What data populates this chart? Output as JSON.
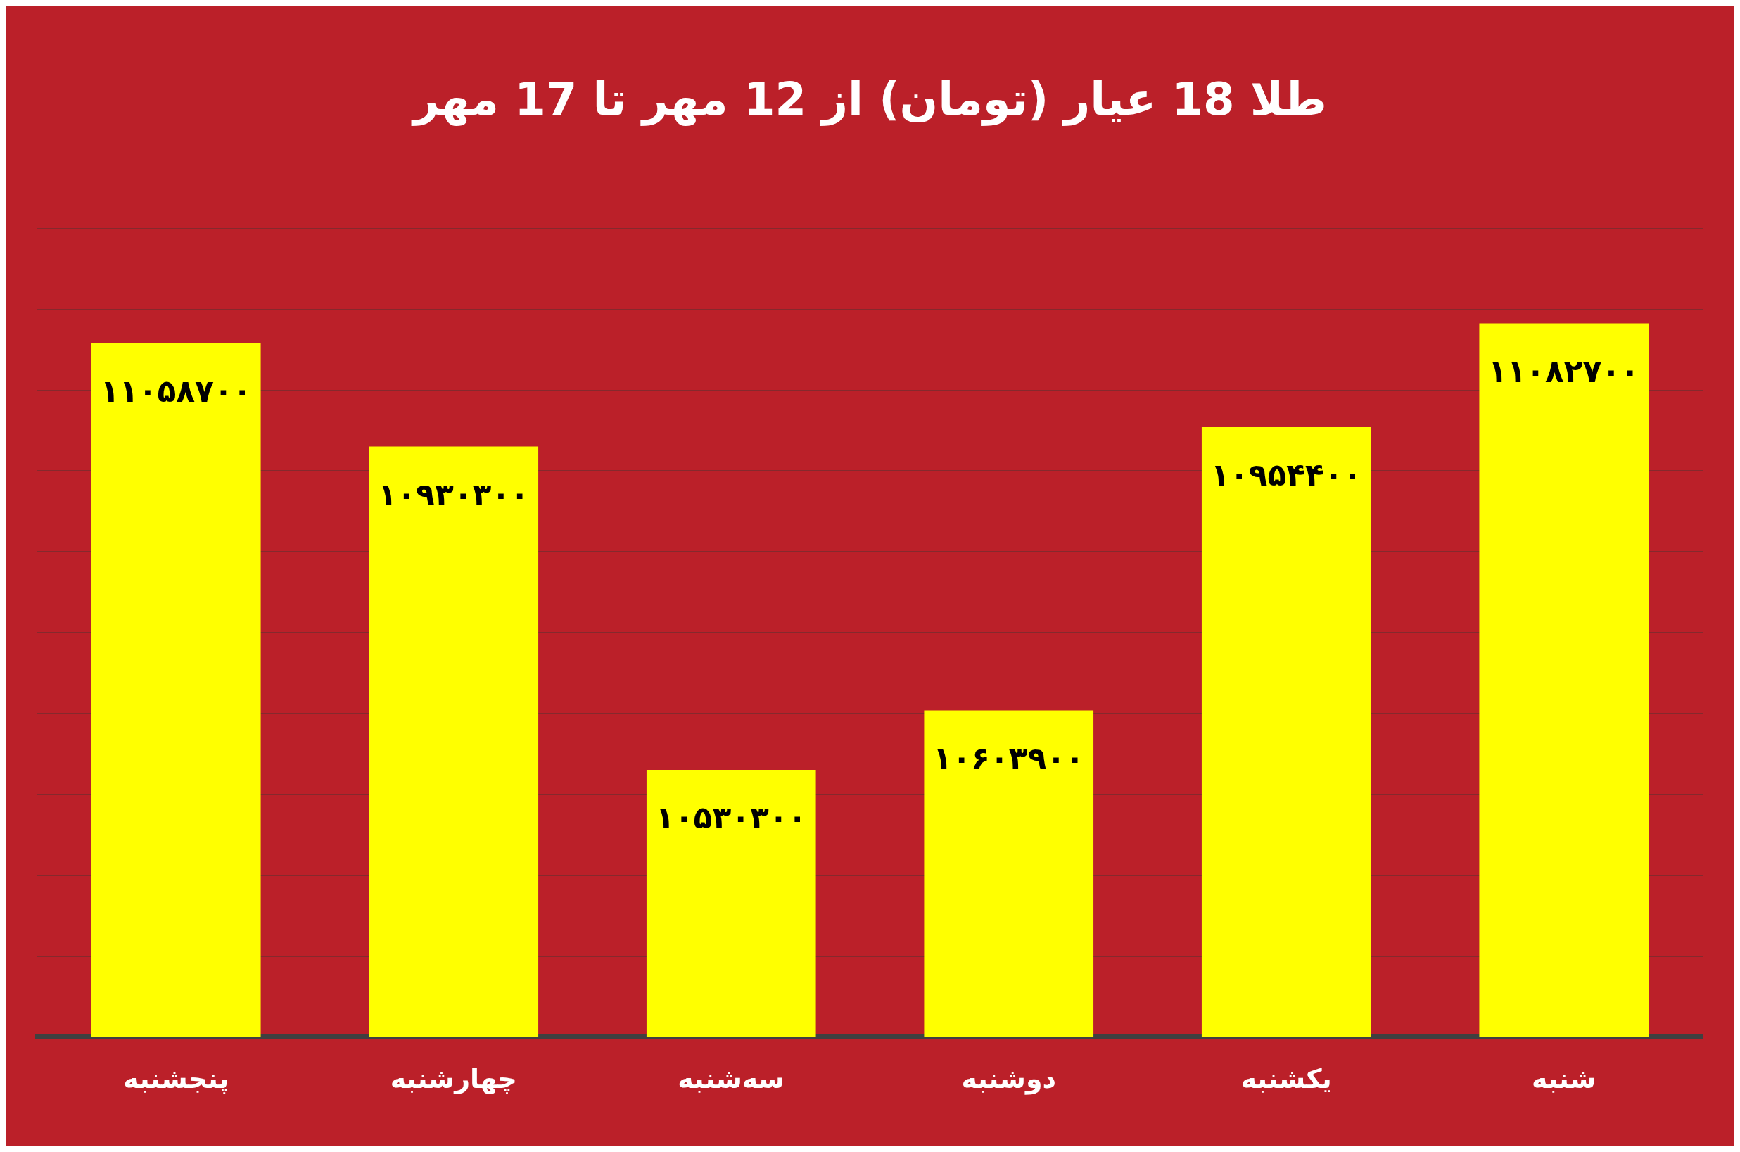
{
  "chart_data": {
    "type": "bar",
    "title": "طلا 18 عیار (تومان) از 12 مهر تا 17 مهر",
    "categories": [
      "پنجشنبه",
      "چهارشنبه",
      "سه‌شنبه",
      "دوشنبه",
      "یکشنبه",
      "شنبه"
    ],
    "values": [
      11058700,
      10930300,
      10530300,
      10603900,
      10954400,
      11082700
    ],
    "value_labels": [
      "۱۱۰۵۸۷۰۰",
      "۱۰۹۳۰۳۰۰",
      "۱۰۵۳۰۳۰۰",
      "۱۰۶۰۳۹۰۰",
      "۱۰۹۵۴۴۰۰",
      "۱۱۰۸۲۷۰۰"
    ],
    "color": "#ffff00",
    "ylim": [
      10200000,
      11200000
    ],
    "yticks": [
      {
        "value": 10200000,
        "label": null
      },
      {
        "value": 10300000,
        "label": null
      },
      {
        "value": 10400000,
        "label": null
      },
      {
        "value": 10500000,
        "label": null
      },
      {
        "value": 10600000,
        "label": null
      },
      {
        "value": 10700000,
        "label": null
      },
      {
        "value": 10800000,
        "label": null
      },
      {
        "value": 10900000,
        "label": null
      },
      {
        "value": 11000000,
        "label": null
      },
      {
        "value": 11100000,
        "label": null
      },
      {
        "value": 11200000,
        "label": null
      }
    ],
    "tick_labels": "x",
    "grid": "y",
    "legend": false
  }
}
